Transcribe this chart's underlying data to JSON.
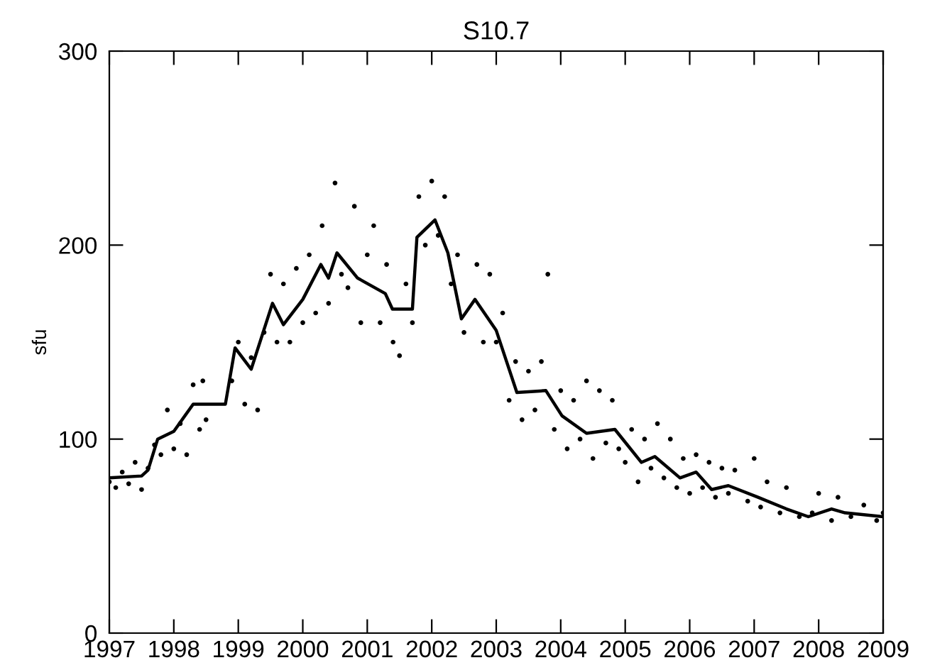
{
  "chart_data": {
    "type": "line",
    "title": "S10.7",
    "ylabel": "sfu",
    "xlim": [
      1997,
      2009
    ],
    "xticks": [
      1997,
      1998,
      1999,
      2000,
      2001,
      2002,
      2003,
      2004,
      2005,
      2006,
      2007,
      2008,
      2009
    ],
    "ylim": [
      0,
      300
    ],
    "yticks": [
      0,
      100,
      200,
      300
    ],
    "grid": false,
    "legend": false,
    "series": [
      {
        "type": "scatter",
        "color": "#000000",
        "marker": "circle",
        "x": [
          1997.0,
          1997.1,
          1997.2,
          1997.3,
          1997.4,
          1997.5,
          1997.6,
          1997.7,
          1997.8,
          1997.9,
          1998.0,
          1998.1,
          1998.2,
          1998.3,
          1998.4,
          1998.45,
          1998.5,
          1998.9,
          1999.0,
          1999.1,
          1999.2,
          1999.3,
          1999.4,
          1999.5,
          1999.6,
          1999.7,
          1999.8,
          1999.9,
          2000.0,
          2000.1,
          2000.2,
          2000.3,
          2000.4,
          2000.5,
          2000.6,
          2000.7,
          2000.8,
          2000.9,
          2001.0,
          2001.1,
          2001.2,
          2001.3,
          2001.4,
          2001.5,
          2001.6,
          2001.7,
          2001.8,
          2001.9,
          2002.0,
          2002.1,
          2002.2,
          2002.3,
          2002.4,
          2002.5,
          2002.7,
          2002.8,
          2002.9,
          2003.0,
          2003.1,
          2003.2,
          2003.3,
          2003.4,
          2003.5,
          2003.6,
          2003.7,
          2003.8,
          2003.9,
          2004.0,
          2004.1,
          2004.2,
          2004.3,
          2004.4,
          2004.5,
          2004.6,
          2004.7,
          2004.8,
          2004.9,
          2005.0,
          2005.1,
          2005.2,
          2005.3,
          2005.4,
          2005.5,
          2005.6,
          2005.7,
          2005.8,
          2005.9,
          2006.0,
          2006.1,
          2006.2,
          2006.3,
          2006.4,
          2006.5,
          2006.6,
          2006.7,
          2006.9,
          2007.0,
          2007.1,
          2007.2,
          2007.4,
          2007.5,
          2007.7,
          2007.9,
          2008.0,
          2008.2,
          2008.3,
          2008.5,
          2008.7,
          2008.9,
          2009.0
        ],
        "values": [
          78,
          75,
          83,
          77,
          88,
          74,
          85,
          97,
          92,
          115,
          95,
          108,
          92,
          128,
          105,
          130,
          110,
          130,
          150,
          118,
          142,
          115,
          155,
          185,
          150,
          180,
          150,
          188,
          160,
          195,
          165,
          210,
          170,
          232,
          185,
          178,
          220,
          160,
          195,
          210,
          160,
          190,
          150,
          143,
          180,
          160,
          225,
          200,
          233,
          205,
          225,
          180,
          195,
          155,
          190,
          150,
          185,
          150,
          165,
          120,
          140,
          110,
          135,
          115,
          140,
          185,
          105,
          125,
          95,
          120,
          100,
          130,
          90,
          125,
          98,
          120,
          95,
          88,
          105,
          78,
          100,
          85,
          108,
          80,
          100,
          75,
          90,
          72,
          92,
          75,
          88,
          70,
          85,
          72,
          84,
          68,
          90,
          65,
          78,
          62,
          75,
          60,
          62,
          72,
          58,
          70,
          60,
          66,
          58,
          62
        ]
      },
      {
        "color": "#000000",
        "line_style": "solid",
        "x": [
          1997.0,
          1997.5,
          1997.6,
          1997.75,
          1998.0,
          1998.3,
          1998.8,
          1998.95,
          1999.2,
          1999.53,
          1999.7,
          2000.0,
          2000.28,
          2000.4,
          2000.53,
          2000.85,
          2001.28,
          2001.39,
          2001.7,
          2001.77,
          2002.05,
          2002.25,
          2002.46,
          2002.67,
          2003.0,
          2003.32,
          2003.77,
          2004.02,
          2004.4,
          2004.84,
          2005.25,
          2005.46,
          2005.85,
          2006.1,
          2006.34,
          2006.6,
          2007.06,
          2007.5,
          2007.84,
          2008.2,
          2008.41,
          2009.0
        ],
        "values": [
          80,
          81,
          84,
          100,
          104,
          118,
          118,
          147,
          136,
          170,
          159,
          172,
          190,
          183,
          196,
          183,
          175,
          167,
          167,
          204,
          213,
          196,
          162,
          172,
          156,
          124,
          125,
          112,
          103,
          105,
          88,
          91,
          80,
          83,
          74,
          76,
          70,
          64,
          60,
          64,
          62,
          60
        ]
      }
    ]
  }
}
